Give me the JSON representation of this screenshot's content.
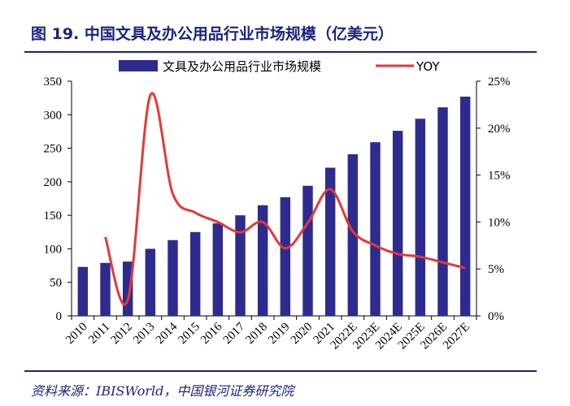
{
  "figure": {
    "title": "图 19. 中国文具及办公用品行业市场规模（亿美元）",
    "source": "资料来源：IBISWorld，中国银河证券研究院"
  },
  "colors": {
    "bar": "#2e2b8f",
    "line": "#e53935",
    "title": "#1a237e"
  },
  "chart_data": {
    "type": "bar+line",
    "title": "",
    "categories": [
      "2010",
      "2011",
      "2012",
      "2013",
      "2014",
      "2015",
      "2016",
      "2017",
      "2018",
      "2019",
      "2020",
      "2021",
      "2022E",
      "2023E",
      "2024E",
      "2025E",
      "2026E",
      "2027E"
    ],
    "series": [
      {
        "name": "文具及办公用品行业市场规模",
        "type": "bar",
        "axis": "left",
        "values": [
          73,
          79,
          81,
          100,
          113,
          125,
          138,
          150,
          165,
          177,
          194,
          221,
          241,
          259,
          276,
          294,
          311,
          327
        ]
      },
      {
        "name": "YOY",
        "type": "line",
        "axis": "right",
        "values": [
          null,
          8.4,
          1.7,
          23.5,
          13.0,
          11.0,
          10.0,
          8.9,
          10.0,
          7.2,
          9.9,
          13.5,
          9.0,
          7.5,
          6.6,
          6.3,
          5.7,
          5.1
        ]
      }
    ],
    "y_left": {
      "min": 0,
      "max": 350,
      "ticks": [
        "0",
        "50",
        "100",
        "150",
        "200",
        "250",
        "300",
        "350"
      ]
    },
    "y_right": {
      "min": 0,
      "max": 25,
      "ticks": [
        "0%",
        "5%",
        "10%",
        "15%",
        "20%",
        "25%"
      ]
    },
    "legend_position": "top",
    "grid": false
  }
}
